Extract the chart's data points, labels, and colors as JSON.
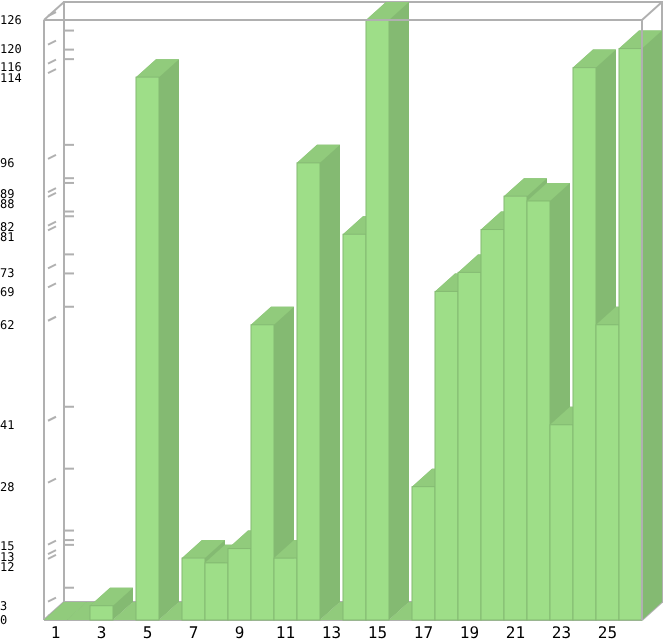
{
  "chart_data": {
    "type": "bar",
    "categories": [
      "1",
      null,
      "3",
      null,
      "5",
      null,
      "7",
      null,
      "9",
      null,
      "11",
      null,
      "13",
      null,
      "15",
      null,
      "17",
      null,
      "19",
      null,
      "21",
      null,
      "23",
      null,
      "25",
      null
    ],
    "values": [
      0,
      0,
      3,
      0,
      114,
      0,
      13,
      12,
      15,
      62,
      13,
      96,
      0,
      81,
      126,
      0,
      28,
      69,
      73,
      82,
      89,
      88,
      41,
      116,
      62,
      120
    ],
    "color": "#9ede88",
    "ylim": [
      0,
      126
    ],
    "yticks": [
      0,
      3,
      12,
      13,
      15,
      28,
      41,
      62,
      69,
      73,
      81,
      82,
      88,
      89,
      96,
      114,
      116,
      120,
      126
    ],
    "grid": false,
    "legend": false
  }
}
